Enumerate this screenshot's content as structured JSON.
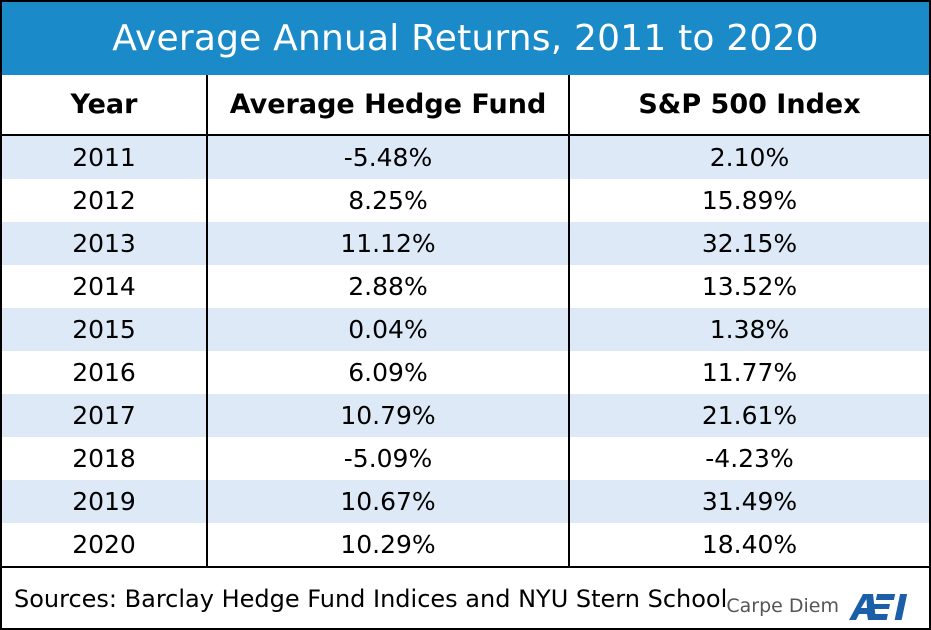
{
  "chart_data": {
    "type": "table",
    "title": "Average Annual Returns, 2011 to 2020",
    "columns": [
      "Year",
      "Average Hedge Fund",
      "S&P 500 Index"
    ],
    "rows": [
      [
        "2011",
        "-5.48%",
        "2.10%"
      ],
      [
        "2012",
        "8.25%",
        "15.89%"
      ],
      [
        "2013",
        "11.12%",
        "32.15%"
      ],
      [
        "2014",
        "2.88%",
        "13.52%"
      ],
      [
        "2015",
        "0.04%",
        "1.38%"
      ],
      [
        "2016",
        "6.09%",
        "11.77%"
      ],
      [
        "2017",
        "10.79%",
        "21.61%"
      ],
      [
        "2018",
        "-5.09%",
        "-4.23%"
      ],
      [
        "2019",
        "10.67%",
        "31.49%"
      ],
      [
        "2020",
        "10.29%",
        "18.40%"
      ]
    ],
    "source": "Sources: Barclay Hedge Fund Indices and NYU Stern School"
  },
  "branding": {
    "text": "Carpe Diem",
    "logo_text": "AEI",
    "logo_icon": "aei-logo-icon"
  },
  "colors": {
    "title_bar": "#1a8ac9",
    "row_stripe": "#dde9f6",
    "logo": "#1a5fa8"
  }
}
